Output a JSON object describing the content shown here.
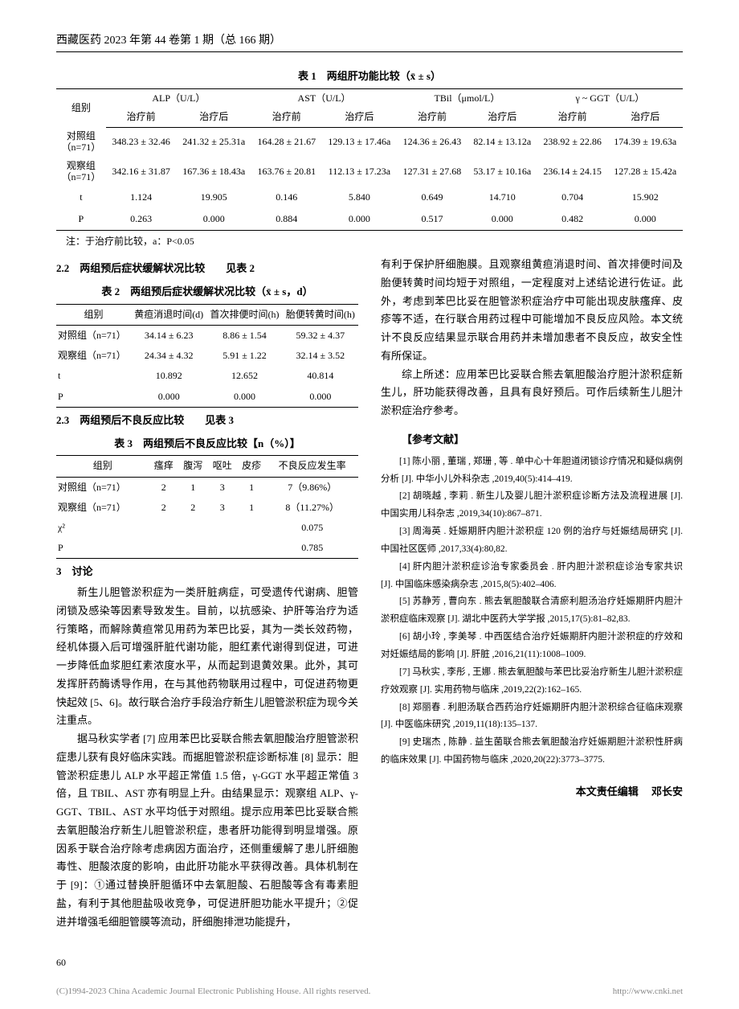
{
  "journal_header": "西藏医药 2023 年第 44 卷第 1 期（总 166 期）",
  "table1": {
    "title": "表 1　两组肝功能比较（x̄ ± s）",
    "group_col": "组别",
    "metrics": [
      {
        "name": "ALP（U/L）",
        "pre": "治疗前",
        "post": "治疗后"
      },
      {
        "name": "AST（U/L）",
        "pre": "治疗前",
        "post": "治疗后"
      },
      {
        "name": "TBil（μmol/L）",
        "pre": "治疗前",
        "post": "治疗后"
      },
      {
        "name": "γ ~ GGT（U/L）",
        "pre": "治疗前",
        "post": "治疗后"
      }
    ],
    "rows": [
      {
        "group": "对照组（n=71）",
        "cells": [
          "348.23 ± 32.46",
          "241.32 ± 25.31a",
          "164.28 ± 21.67",
          "129.13 ± 17.46a",
          "124.36 ± 26.43",
          "82.14 ± 13.12a",
          "238.92 ± 22.86",
          "174.39 ± 19.63a"
        ]
      },
      {
        "group": "观察组（n=71）",
        "cells": [
          "342.16 ± 31.87",
          "167.36 ± 18.43a",
          "163.76 ± 20.81",
          "112.13 ± 17.23a",
          "127.31 ± 27.68",
          "53.17 ± 10.16a",
          "236.14 ± 24.15",
          "127.28 ± 15.42a"
        ]
      },
      {
        "group": "t",
        "cells": [
          "1.124",
          "19.905",
          "0.146",
          "5.840",
          "0.649",
          "14.710",
          "0.704",
          "15.902"
        ]
      },
      {
        "group": "P",
        "cells": [
          "0.263",
          "0.000",
          "0.884",
          "0.000",
          "0.517",
          "0.000",
          "0.482",
          "0.000"
        ]
      }
    ],
    "note": "注：于治疗前比较，a：P<0.05"
  },
  "sec22": "2.2　两组预后症状缓解状况比较　　见表 2",
  "table2": {
    "title": "表 2　两组预后症状缓解状况比较（x̄ ± s，d）",
    "columns": [
      "组别",
      "黄疸消退时间(d)",
      "首次排便时间(h)",
      "胎便转黄时间(h)"
    ],
    "rows": [
      [
        "对照组（n=71）",
        "34.14 ± 6.23",
        "8.86 ± 1.54",
        "59.32 ± 4.37"
      ],
      [
        "观察组（n=71）",
        "24.34 ± 4.32",
        "5.91 ± 1.22",
        "32.14 ± 3.52"
      ],
      [
        "t",
        "10.892",
        "12.652",
        "40.814"
      ],
      [
        "P",
        "0.000",
        "0.000",
        "0.000"
      ]
    ]
  },
  "sec23": "2.3　两组预后不良反应比较　　见表 3",
  "table3": {
    "title": "表 3　两组预后不良反应比较【n（%）】",
    "columns": [
      "组别",
      "瘙痒",
      "腹泻",
      "呕吐",
      "皮疹",
      "不良反应发生率"
    ],
    "rows": [
      [
        "对照组（n=71）",
        "2",
        "1",
        "3",
        "1",
        "7（9.86%）"
      ],
      [
        "观察组（n=71）",
        "2",
        "2",
        "3",
        "1",
        "8（11.27%）"
      ],
      [
        "χ²",
        "",
        "",
        "",
        "",
        "0.075"
      ],
      [
        "P",
        "",
        "",
        "",
        "",
        "0.785"
      ]
    ]
  },
  "sec3": "3　讨论",
  "discussion_left": [
    "新生儿胆管淤积症为一类肝脏病症，可受遗传代谢病、胆管闭锁及感染等因素导致发生。目前，以抗感染、护肝等治疗为适行策略，而解除黄疸常见用药为苯巴比妥，其为一类长效药物，经机体摄入后可增强肝脏代谢功能，胆红素代谢得到促进，可进一步降低血浆胆红素浓度水平，从而起到退黄效果。此外，其可发挥肝药酶诱导作用，在与其他药物联用过程中，可促进药物更快起效 [5、6]。故行联合治疗手段治疗新生儿胆管淤积症为现今关注重点。",
    "据马秋实学者 [7] 应用苯巴比妥联合熊去氧胆酸治疗胆管淤积症患儿获有良好临床实践。而据胆管淤积症诊断标准 [8] 显示：胆管淤积症患儿 ALP 水平超正常值 1.5 倍，γ-GGT 水平超正常值 3 倍，且 TBIL、AST 亦有明显上升。由结果显示：观察组 ALP、γ-GGT、TBIL、AST 水平均低于对照组。提示应用苯巴比妥联合熊去氧胆酸治疗新生儿胆管淤积症，患者肝功能得到明显增强。原因系于联合治疗除考虑病因方面治疗，还侧重缓解了患儿肝细胞毒性、胆酸浓度的影响，由此肝功能水平获得改善。具体机制在于 [9]：①通过替换肝胆循环中去氧胆酸、石胆酸等含有毒素胆盐，有利于其他胆盐吸收竞争，可促进肝胆功能水平提升；②促进并增强毛细胆管膜等流动，肝细胞排泄功能提升，"
  ],
  "discussion_right": [
    "有利于保护肝细胞膜。且观察组黄疸消退时间、首次排便时间及胎便转黄时间均短于对照组，一定程度对上述结论进行佐证。此外，考虑到苯巴比妥在胆管淤积症治疗中可能出现皮肤瘙痒、皮疹等不适，在行联合用药过程中可能增加不良反应风险。本文统计不良反应结果显示联合用药并未增加患者不良反应，故安全性有所保证。",
    "综上所述：应用苯巴比妥联合熊去氧胆酸治疗胆汁淤积症新生儿，肝功能获得改善，且具有良好预后。可作后续新生儿胆汁淤积症治疗参考。"
  ],
  "refs_heading": "【参考文献】",
  "refs": [
    "[1] 陈小丽 , 董瑞 , 郑珊 , 等 . 单中心十年胆道闭锁诊疗情况和疑似病例分析 [J]. 中华小儿外科杂志 ,2019,40(5):414–419.",
    "[2] 胡晓越 , 李莉 . 新生儿及婴儿胆汁淤积症诊断方法及流程进展 [J]. 中国实用儿科杂志 ,2019,34(10):867–871.",
    "[3] 周海英 . 妊娠期肝内胆汁淤积症 120 例的治疗与妊娠结局研究 [J]. 中国社区医师 ,2017,33(4):80,82.",
    "[4] 肝内胆汁淤积症诊治专家委员会 . 肝内胆汁淤积症诊治专家共识 [J]. 中国临床感染病杂志 ,2015,8(5):402–406.",
    "[5] 苏静芳 , 曹向东 . 熊去氧胆酸联合清瘀利胆汤治疗妊娠期肝内胆汁淤积症临床观察 [J]. 湖北中医药大学学报 ,2015,17(5):81–82,83.",
    "[6] 胡小玲 , 李美琴 . 中西医结合治疗妊娠期肝内胆汁淤积症的疗效和对妊娠结局的影响 [J]. 肝脏 ,2016,21(11):1008–1009.",
    "[7] 马秋实 , 李彤 , 王娜 . 熊去氧胆酸与苯巴比妥治疗新生儿胆汁淤积症疗效观察 [J]. 实用药物与临床 ,2019,22(2):162–165.",
    "[8] 郑丽春 . 利胆汤联合西药治疗妊娠期肝内胆汁淤积综合征临床观察 [J]. 中医临床研究 ,2019,11(18):135–137.",
    "[9] 史瑞杰 , 陈静 . 益生菌联合熊去氧胆酸治疗妊娠期胆汁淤积性肝病的临床效果 [J]. 中国药物与临床 ,2020,20(22):3773–3775."
  ],
  "editor": "本文责任编辑　 邓长安",
  "page_num": "60",
  "footer_left": "(C)1994-2023 China Academic Journal Electronic Publishing House. All rights reserved.",
  "footer_right": "http://www.cnki.net"
}
